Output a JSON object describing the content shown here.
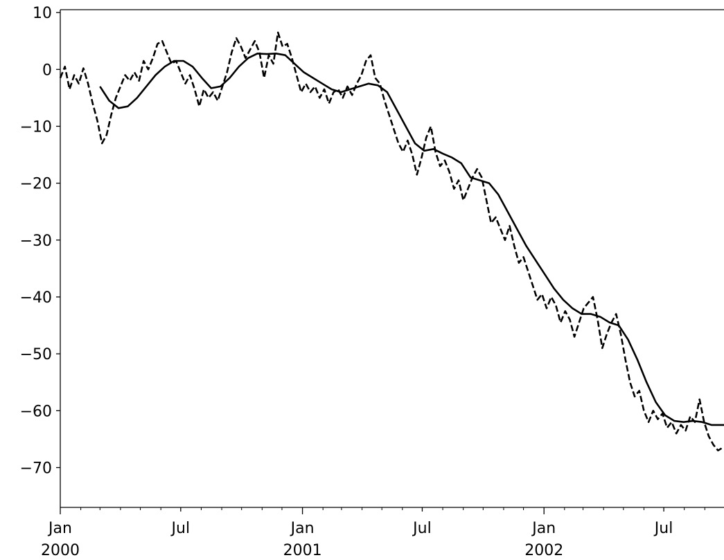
{
  "chart_data": {
    "type": "line",
    "title": "",
    "xlabel": "",
    "ylabel": "",
    "grid": false,
    "x_range": [
      "2000-01-01",
      "2002-09-30"
    ],
    "ylim": [
      -77,
      10.5
    ],
    "y_ticks": [
      10,
      0,
      -10,
      -20,
      -30,
      -40,
      -50,
      -60,
      -70
    ],
    "x_ticks": [
      {
        "date": "2000-01-01",
        "label": "Jan",
        "sublabel": "2000"
      },
      {
        "date": "2000-07-01",
        "label": "Jul",
        "sublabel": ""
      },
      {
        "date": "2001-01-01",
        "label": "Jan",
        "sublabel": "2001"
      },
      {
        "date": "2001-07-01",
        "label": "Jul",
        "sublabel": ""
      },
      {
        "date": "2002-01-01",
        "label": "Jan",
        "sublabel": "2002"
      },
      {
        "date": "2002-07-01",
        "label": "Jul",
        "sublabel": ""
      }
    ],
    "series": [
      {
        "style": "dashed",
        "color": "#000000",
        "points": [
          [
            "2000-01-01",
            -1.5
          ],
          [
            "2000-01-08",
            0.5
          ],
          [
            "2000-01-15",
            -3.5
          ],
          [
            "2000-01-22",
            -1.0
          ],
          [
            "2000-01-29",
            -2.5
          ],
          [
            "2000-02-05",
            0.2
          ],
          [
            "2000-02-12",
            -2.5
          ],
          [
            "2000-02-19",
            -6.0
          ],
          [
            "2000-02-26",
            -9.0
          ],
          [
            "2000-03-04",
            -13.0
          ],
          [
            "2000-03-11",
            -11.5
          ],
          [
            "2000-03-18",
            -8.0
          ],
          [
            "2000-03-25",
            -5.0
          ],
          [
            "2000-04-01",
            -3.0
          ],
          [
            "2000-04-08",
            -1.0
          ],
          [
            "2000-04-15",
            -2.0
          ],
          [
            "2000-04-22",
            -0.5
          ],
          [
            "2000-04-29",
            -2.0
          ],
          [
            "2000-05-06",
            1.5
          ],
          [
            "2000-05-13",
            0.0
          ],
          [
            "2000-05-20",
            2.0
          ],
          [
            "2000-05-27",
            4.5
          ],
          [
            "2000-06-03",
            5.0
          ],
          [
            "2000-06-10",
            3.0
          ],
          [
            "2000-06-17",
            1.0
          ],
          [
            "2000-06-24",
            1.5
          ],
          [
            "2000-07-01",
            -0.5
          ],
          [
            "2000-07-08",
            -2.5
          ],
          [
            "2000-07-15",
            -1.0
          ],
          [
            "2000-07-22",
            -3.5
          ],
          [
            "2000-07-29",
            -6.5
          ],
          [
            "2000-08-05",
            -3.5
          ],
          [
            "2000-08-12",
            -5.0
          ],
          [
            "2000-08-19",
            -4.0
          ],
          [
            "2000-08-26",
            -5.5
          ],
          [
            "2000-09-02",
            -3.0
          ],
          [
            "2000-09-09",
            -0.5
          ],
          [
            "2000-09-16",
            3.0
          ],
          [
            "2000-09-23",
            5.5
          ],
          [
            "2000-09-30",
            4.0
          ],
          [
            "2000-10-07",
            2.0
          ],
          [
            "2000-10-14",
            3.5
          ],
          [
            "2000-10-21",
            5.0
          ],
          [
            "2000-10-28",
            3.0
          ],
          [
            "2000-11-04",
            -1.5
          ],
          [
            "2000-11-11",
            2.5
          ],
          [
            "2000-11-18",
            1.0
          ],
          [
            "2000-11-25",
            6.5
          ],
          [
            "2000-12-02",
            4.0
          ],
          [
            "2000-12-09",
            4.5
          ],
          [
            "2000-12-16",
            2.0
          ],
          [
            "2000-12-23",
            -1.0
          ],
          [
            "2000-12-30",
            -4.0
          ],
          [
            "2001-01-06",
            -2.5
          ],
          [
            "2001-01-13",
            -4.0
          ],
          [
            "2001-01-20",
            -3.0
          ],
          [
            "2001-01-27",
            -5.0
          ],
          [
            "2001-02-03",
            -3.5
          ],
          [
            "2001-02-10",
            -6.0
          ],
          [
            "2001-02-17",
            -4.0
          ],
          [
            "2001-02-24",
            -3.5
          ],
          [
            "2001-03-03",
            -5.0
          ],
          [
            "2001-03-10",
            -3.0
          ],
          [
            "2001-03-17",
            -4.5
          ],
          [
            "2001-03-24",
            -2.5
          ],
          [
            "2001-03-31",
            -1.0
          ],
          [
            "2001-04-07",
            1.5
          ],
          [
            "2001-04-14",
            2.5
          ],
          [
            "2001-04-21",
            -1.5
          ],
          [
            "2001-04-28",
            -2.5
          ],
          [
            "2001-05-05",
            -5.5
          ],
          [
            "2001-05-12",
            -8.0
          ],
          [
            "2001-05-19",
            -10.5
          ],
          [
            "2001-05-26",
            -13.0
          ],
          [
            "2001-06-02",
            -14.5
          ],
          [
            "2001-06-09",
            -12.5
          ],
          [
            "2001-06-16",
            -15.0
          ],
          [
            "2001-06-23",
            -18.5
          ],
          [
            "2001-06-30",
            -15.5
          ],
          [
            "2001-07-07",
            -12.0
          ],
          [
            "2001-07-14",
            -10.0
          ],
          [
            "2001-07-21",
            -14.5
          ],
          [
            "2001-07-28",
            -17.0
          ],
          [
            "2001-08-04",
            -16.0
          ],
          [
            "2001-08-11",
            -18.0
          ],
          [
            "2001-08-18",
            -21.0
          ],
          [
            "2001-08-25",
            -19.5
          ],
          [
            "2001-09-01",
            -23.0
          ],
          [
            "2001-09-08",
            -21.0
          ],
          [
            "2001-09-15",
            -19.0
          ],
          [
            "2001-09-22",
            -17.5
          ],
          [
            "2001-09-29",
            -19.0
          ],
          [
            "2001-10-06",
            -23.0
          ],
          [
            "2001-10-13",
            -27.0
          ],
          [
            "2001-10-20",
            -26.0
          ],
          [
            "2001-10-27",
            -28.0
          ],
          [
            "2001-11-03",
            -30.0
          ],
          [
            "2001-11-10",
            -27.5
          ],
          [
            "2001-11-17",
            -31.0
          ],
          [
            "2001-11-24",
            -34.0
          ],
          [
            "2001-12-01",
            -33.0
          ],
          [
            "2001-12-08",
            -35.5
          ],
          [
            "2001-12-15",
            -38.0
          ],
          [
            "2001-12-22",
            -40.5
          ],
          [
            "2001-12-29",
            -39.5
          ],
          [
            "2002-01-05",
            -42.0
          ],
          [
            "2002-01-12",
            -40.0
          ],
          [
            "2002-01-19",
            -41.5
          ],
          [
            "2002-01-26",
            -44.5
          ],
          [
            "2002-02-02",
            -42.5
          ],
          [
            "2002-02-09",
            -44.0
          ],
          [
            "2002-02-16",
            -47.0
          ],
          [
            "2002-02-23",
            -44.5
          ],
          [
            "2002-03-02",
            -42.0
          ],
          [
            "2002-03-09",
            -41.0
          ],
          [
            "2002-03-16",
            -40.0
          ],
          [
            "2002-03-23",
            -44.0
          ],
          [
            "2002-03-30",
            -49.0
          ],
          [
            "2002-04-06",
            -46.5
          ],
          [
            "2002-04-13",
            -44.5
          ],
          [
            "2002-04-20",
            -43.0
          ],
          [
            "2002-04-27",
            -46.5
          ],
          [
            "2002-05-04",
            -51.0
          ],
          [
            "2002-05-11",
            -55.0
          ],
          [
            "2002-05-18",
            -57.5
          ],
          [
            "2002-05-25",
            -56.5
          ],
          [
            "2002-06-01",
            -60.0
          ],
          [
            "2002-06-08",
            -62.0
          ],
          [
            "2002-06-15",
            -60.0
          ],
          [
            "2002-06-22",
            -61.5
          ],
          [
            "2002-06-29",
            -60.5
          ],
          [
            "2002-07-06",
            -63.0
          ],
          [
            "2002-07-13",
            -62.0
          ],
          [
            "2002-07-20",
            -64.0
          ],
          [
            "2002-07-27",
            -62.5
          ],
          [
            "2002-08-03",
            -63.5
          ],
          [
            "2002-08-10",
            -61.0
          ],
          [
            "2002-08-17",
            -62.0
          ],
          [
            "2002-08-24",
            -58.0
          ],
          [
            "2002-08-31",
            -62.0
          ],
          [
            "2002-09-07",
            -64.5
          ],
          [
            "2002-09-14",
            -66.0
          ],
          [
            "2002-09-21",
            -67.0
          ],
          [
            "2002-09-28",
            -66.5
          ]
        ]
      },
      {
        "style": "solid",
        "color": "#000000",
        "points": [
          [
            "2000-03-01",
            -3.0
          ],
          [
            "2000-03-15",
            -5.5
          ],
          [
            "2000-03-29",
            -6.8
          ],
          [
            "2000-04-12",
            -6.5
          ],
          [
            "2000-04-26",
            -5.0
          ],
          [
            "2000-05-10",
            -3.0
          ],
          [
            "2000-05-24",
            -1.0
          ],
          [
            "2000-06-07",
            0.5
          ],
          [
            "2000-06-21",
            1.5
          ],
          [
            "2000-07-05",
            1.5
          ],
          [
            "2000-07-19",
            0.5
          ],
          [
            "2000-08-02",
            -1.5
          ],
          [
            "2000-08-16",
            -3.3
          ],
          [
            "2000-08-30",
            -3.0
          ],
          [
            "2000-09-13",
            -1.5
          ],
          [
            "2000-09-27",
            0.5
          ],
          [
            "2000-10-11",
            2.0
          ],
          [
            "2000-10-25",
            2.8
          ],
          [
            "2000-11-08",
            2.7
          ],
          [
            "2000-11-22",
            2.8
          ],
          [
            "2000-12-06",
            2.5
          ],
          [
            "2000-12-20",
            1.0
          ],
          [
            "2001-01-03",
            -0.5
          ],
          [
            "2001-01-17",
            -1.5
          ],
          [
            "2001-01-31",
            -2.5
          ],
          [
            "2001-02-14",
            -3.5
          ],
          [
            "2001-02-28",
            -4.0
          ],
          [
            "2001-03-14",
            -3.5
          ],
          [
            "2001-03-28",
            -3.0
          ],
          [
            "2001-04-11",
            -2.5
          ],
          [
            "2001-04-25",
            -2.8
          ],
          [
            "2001-05-09",
            -4.0
          ],
          [
            "2001-05-23",
            -7.0
          ],
          [
            "2001-06-06",
            -10.0
          ],
          [
            "2001-06-20",
            -13.0
          ],
          [
            "2001-07-04",
            -14.3
          ],
          [
            "2001-07-18",
            -14.0
          ],
          [
            "2001-08-01",
            -14.8
          ],
          [
            "2001-08-15",
            -15.5
          ],
          [
            "2001-08-29",
            -16.5
          ],
          [
            "2001-09-12",
            -19.0
          ],
          [
            "2001-09-26",
            -19.5
          ],
          [
            "2001-10-10",
            -20.0
          ],
          [
            "2001-10-24",
            -22.0
          ],
          [
            "2001-11-07",
            -25.0
          ],
          [
            "2001-11-21",
            -28.0
          ],
          [
            "2001-12-05",
            -31.0
          ],
          [
            "2001-12-19",
            -33.5
          ],
          [
            "2002-01-02",
            -36.0
          ],
          [
            "2002-01-16",
            -38.5
          ],
          [
            "2002-01-30",
            -40.5
          ],
          [
            "2002-02-13",
            -42.0
          ],
          [
            "2002-02-27",
            -43.0
          ],
          [
            "2002-03-13",
            -43.0
          ],
          [
            "2002-03-27",
            -43.5
          ],
          [
            "2002-04-10",
            -44.5
          ],
          [
            "2002-04-24",
            -45.0
          ],
          [
            "2002-05-08",
            -47.5
          ],
          [
            "2002-05-22",
            -51.0
          ],
          [
            "2002-06-05",
            -55.0
          ],
          [
            "2002-06-19",
            -58.5
          ],
          [
            "2002-07-03",
            -60.8
          ],
          [
            "2002-07-17",
            -61.8
          ],
          [
            "2002-07-31",
            -62.0
          ],
          [
            "2002-08-14",
            -61.8
          ],
          [
            "2002-08-28",
            -62.0
          ],
          [
            "2002-09-11",
            -62.5
          ],
          [
            "2002-09-30",
            -62.5
          ]
        ]
      }
    ]
  }
}
